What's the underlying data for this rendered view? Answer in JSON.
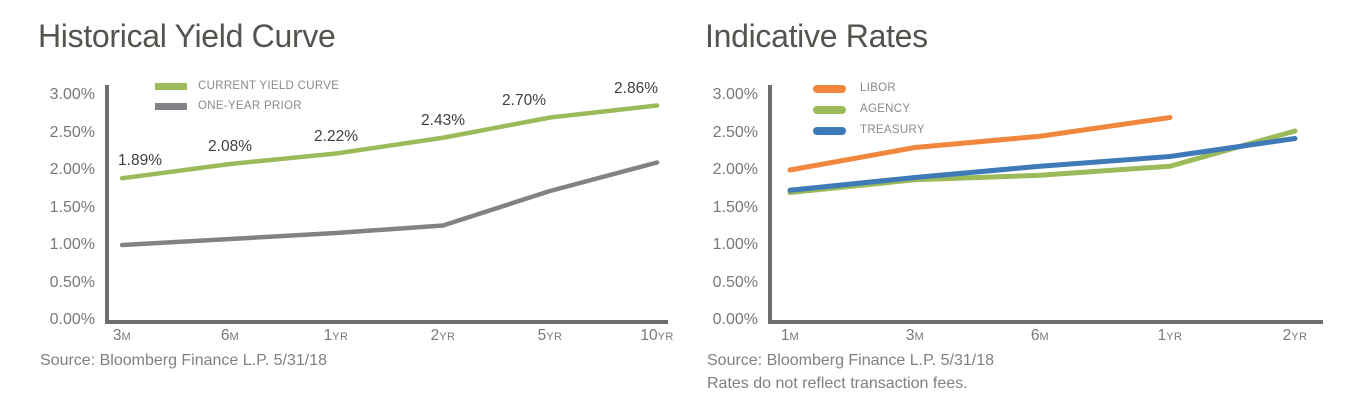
{
  "palette": {
    "background": "#FFFFFF",
    "title_text": "#52544D",
    "axis_line": "#6D6E71",
    "axis_tick_text": "#77787B",
    "data_label_text": "#3E3F41",
    "legend_text": "#898A8D",
    "source_text": "#7E8083",
    "series_green": "#9BBA59",
    "series_gray": "#808285",
    "series_orange": "#F0873C",
    "series_blue": "#3E79B8"
  },
  "chart_data": [
    {
      "type": "line",
      "title": "Historical Yield Curve",
      "categories": [
        "3M",
        "6M",
        "1YR",
        "2YR",
        "5YR",
        "10YR"
      ],
      "series": [
        {
          "name": "CURRENT YIELD CURVE",
          "color": "#9BBA59",
          "values": [
            1.89,
            2.08,
            2.22,
            2.43,
            2.7,
            2.86
          ],
          "data_labels": [
            "1.89%",
            "2.08%",
            "2.22%",
            "2.43%",
            "2.70%",
            "2.86%"
          ]
        },
        {
          "name": "ONE-YEAR PRIOR",
          "color": "#808285",
          "values": [
            1.0,
            1.08,
            1.16,
            1.26,
            1.72,
            2.1
          ]
        }
      ],
      "xlabel": "",
      "ylabel": "",
      "ylim": [
        0,
        3
      ],
      "ytick_labels": [
        "3.00%",
        "2.50%",
        "2.00%",
        "1.50%",
        "1.00%",
        "0.50%",
        "0.00%"
      ],
      "grid": false,
      "legend_position": "top-inside-left",
      "source": "Source: Bloomberg Finance L.P. 5/31/18"
    },
    {
      "type": "line",
      "title": "Indicative Rates",
      "categories": [
        "1M",
        "3M",
        "6M",
        "1YR",
        "2YR"
      ],
      "series": [
        {
          "name": "LIBOR",
          "color": "#F0873C",
          "values": [
            2.0,
            2.3,
            2.45,
            2.7,
            null
          ]
        },
        {
          "name": "AGENCY",
          "color": "#9BBA59",
          "values": [
            1.7,
            1.87,
            1.93,
            2.05,
            2.52
          ]
        },
        {
          "name": "TREASURY",
          "color": "#3E79B8",
          "values": [
            1.73,
            1.9,
            2.05,
            2.18,
            2.42
          ]
        }
      ],
      "xlabel": "",
      "ylabel": "",
      "ylim": [
        0,
        3
      ],
      "ytick_labels": [
        "3.00%",
        "2.50%",
        "2.00%",
        "1.50%",
        "1.00%",
        "0.50%",
        "0.00%"
      ],
      "grid": false,
      "legend_position": "top-inside-left",
      "source": "Source: Bloomberg Finance L.P. 5/31/18",
      "footnote": "Rates do not reflect transaction fees."
    }
  ]
}
